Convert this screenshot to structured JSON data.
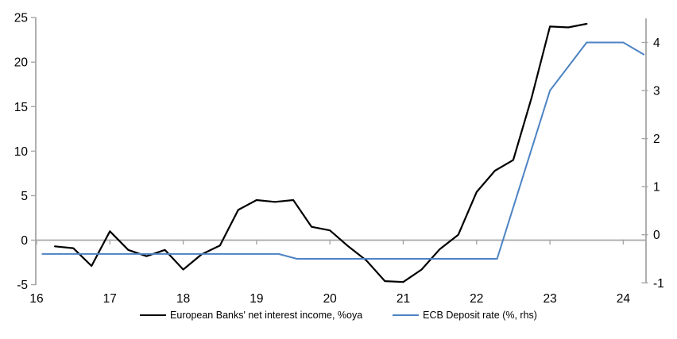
{
  "colors": {
    "background": "#ffffff",
    "axis": "#a6a6a6",
    "zero_line": "#a6a6a6",
    "text": "#000000",
    "nii_line": "#000000",
    "ecb_line": "#4c83c3"
  },
  "chart_data": {
    "type": "line",
    "title": "",
    "grid": "zero-line-only",
    "legend_position": "bottom",
    "x_axis": {
      "tick_labels": [
        16,
        17,
        18,
        19,
        20,
        21,
        22,
        23,
        24
      ],
      "range": [
        15.98,
        24.32
      ]
    },
    "left_axis": {
      "tick_labels": [
        25,
        20,
        15,
        10,
        5,
        0,
        -5
      ],
      "range": [
        -5,
        25
      ]
    },
    "right_axis": {
      "tick_labels": [
        4,
        3,
        2,
        1,
        0,
        -1
      ],
      "range": [
        -1,
        4.5
      ]
    },
    "series": [
      {
        "name": "European Banks' net interest income, %oya",
        "axis": "left",
        "color_key": "nii_line",
        "points": [
          [
            16.25,
            -0.7
          ],
          [
            16.5,
            -0.9
          ],
          [
            16.75,
            -2.9
          ],
          [
            17.0,
            1.0
          ],
          [
            17.25,
            -1.1
          ],
          [
            17.5,
            -1.8
          ],
          [
            17.75,
            -1.1
          ],
          [
            18.0,
            -3.3
          ],
          [
            18.25,
            -1.6
          ],
          [
            18.5,
            -0.6
          ],
          [
            18.75,
            3.4
          ],
          [
            19.0,
            4.5
          ],
          [
            19.25,
            4.3
          ],
          [
            19.5,
            4.5
          ],
          [
            19.75,
            1.5
          ],
          [
            20.0,
            1.1
          ],
          [
            20.25,
            -0.7
          ],
          [
            20.5,
            -2.3
          ],
          [
            20.75,
            -4.6
          ],
          [
            21.0,
            -4.7
          ],
          [
            21.25,
            -3.3
          ],
          [
            21.5,
            -1.0
          ],
          [
            21.75,
            0.6
          ],
          [
            22.0,
            5.4
          ],
          [
            22.25,
            7.8
          ],
          [
            22.5,
            9.0
          ],
          [
            22.75,
            16.0
          ],
          [
            23.0,
            24.0
          ],
          [
            23.25,
            23.9
          ],
          [
            23.5,
            24.3
          ]
        ]
      },
      {
        "name": "ECB Deposit rate (%, rhs)",
        "axis": "right",
        "color_key": "ecb_line",
        "points": [
          [
            16.08,
            -0.4
          ],
          [
            19.3,
            -0.4
          ],
          [
            19.55,
            -0.5
          ],
          [
            22.28,
            -0.5
          ],
          [
            23.0,
            3.0
          ],
          [
            23.5,
            4.0
          ],
          [
            24.0,
            4.0
          ],
          [
            24.28,
            3.75
          ]
        ]
      }
    ]
  }
}
